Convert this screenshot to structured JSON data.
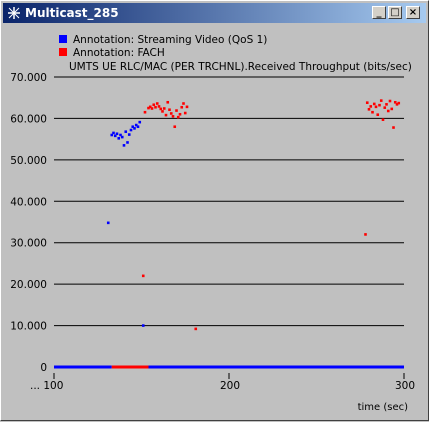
{
  "window": {
    "title": "Multicast_285",
    "minimize_label": "_",
    "maximize_label": "□",
    "close_label": "×",
    "title_gradient": [
      "#0a246a",
      "#a6caf0"
    ]
  },
  "chart_data": {
    "type": "scatter",
    "title": "UMTS UE RLC/MAC (PER TRCHNL).Received Throughput (bits/sec)",
    "xlabel": "time (sec)",
    "ylabel": "",
    "xlim": [
      100,
      300
    ],
    "ylim": [
      0,
      70000
    ],
    "x_ticks": [
      100,
      200,
      300
    ],
    "x_tick_labels": [
      "... 100",
      "200",
      "300"
    ],
    "y_ticks": [
      0,
      10000,
      20000,
      30000,
      40000,
      50000,
      60000,
      70000
    ],
    "y_tick_labels": [
      "0",
      "10.000",
      "20.000",
      "30.000",
      "40.000",
      "50.000",
      "60.000",
      "70.000"
    ],
    "grid": true,
    "legend_position": "top-left",
    "background": "#c0c0c0",
    "series": [
      {
        "name": "Annotation: Streaming Video (QoS 1)",
        "color": "#0000ff",
        "points": [
          [
            131,
            34800
          ],
          [
            133,
            56000
          ],
          [
            134,
            56500
          ],
          [
            135,
            55800
          ],
          [
            136,
            56300
          ],
          [
            137,
            55200
          ],
          [
            138,
            56000
          ],
          [
            139,
            55500
          ],
          [
            140,
            53500
          ],
          [
            141,
            56800
          ],
          [
            142,
            54200
          ],
          [
            143,
            56100
          ],
          [
            144,
            57200
          ],
          [
            145,
            58000
          ],
          [
            146,
            57600
          ],
          [
            147,
            58400
          ],
          [
            148,
            58000
          ],
          [
            149,
            59100
          ],
          [
            151,
            10000
          ]
        ],
        "baseline_segments": [
          [
            100,
            133
          ],
          [
            154,
            300
          ]
        ]
      },
      {
        "name": "Annotation: FACH",
        "color": "#ff0000",
        "points": [
          [
            151,
            22000
          ],
          [
            152,
            61500
          ],
          [
            154,
            62500
          ],
          [
            155,
            62800
          ],
          [
            156,
            62400
          ],
          [
            157,
            63300
          ],
          [
            158,
            62700
          ],
          [
            159,
            63600
          ],
          [
            160,
            62900
          ],
          [
            161,
            62300
          ],
          [
            162,
            61700
          ],
          [
            163,
            62400
          ],
          [
            164,
            60800
          ],
          [
            165,
            63900
          ],
          [
            166,
            62100
          ],
          [
            167,
            61200
          ],
          [
            168,
            60500
          ],
          [
            169,
            58000
          ],
          [
            170,
            61900
          ],
          [
            171,
            60300
          ],
          [
            172,
            61000
          ],
          [
            173,
            62700
          ],
          [
            174,
            63600
          ],
          [
            175,
            61300
          ],
          [
            176,
            62800
          ],
          [
            181,
            9200
          ],
          [
            278,
            32000
          ],
          [
            279,
            63800
          ],
          [
            280,
            62200
          ],
          [
            281,
            62900
          ],
          [
            282,
            61500
          ],
          [
            283,
            63500
          ],
          [
            284,
            62800
          ],
          [
            285,
            60900
          ],
          [
            286,
            63200
          ],
          [
            287,
            64300
          ],
          [
            288,
            59700
          ],
          [
            289,
            62600
          ],
          [
            290,
            63400
          ],
          [
            291,
            61800
          ],
          [
            292,
            64200
          ],
          [
            293,
            62300
          ],
          [
            294,
            57800
          ],
          [
            295,
            63900
          ],
          [
            296,
            63400
          ],
          [
            297,
            63700
          ]
        ],
        "baseline_segments": [
          [
            133,
            154
          ]
        ]
      }
    ]
  }
}
